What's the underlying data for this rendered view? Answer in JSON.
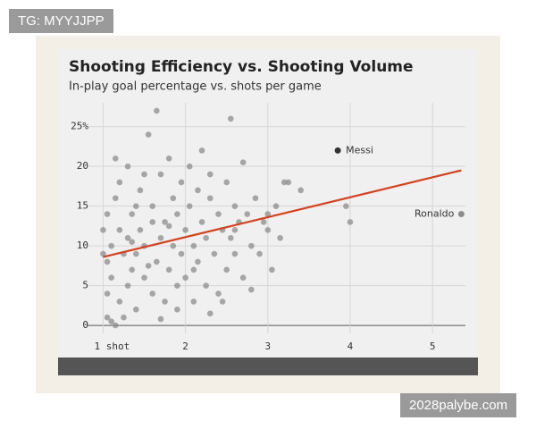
{
  "chart_data": {
    "type": "scatter",
    "title": "Shooting Efficiency vs. Shooting Volume",
    "subtitle": "In-play goal percentage vs. shots per game",
    "xlim": [
      0.8,
      5.4
    ],
    "ylim": [
      -1,
      28
    ],
    "xticks": [
      {
        "value": 1,
        "label": "1 shot"
      },
      2,
      3,
      4,
      5
    ],
    "yticks": [
      0,
      5,
      10,
      15,
      20,
      {
        "value": 25,
        "label": "25%"
      }
    ],
    "grid": true,
    "color": "#8c8c8c",
    "x": [
      1.05,
      1.1,
      1.15,
      1.05,
      1.1,
      1.2,
      1.05,
      1.1,
      1.2,
      1.05,
      1.15,
      1.2,
      1.25,
      1.3,
      1.3,
      1.35,
      1.35,
      1.4,
      1.4,
      1.45,
      1.45,
      1.5,
      1.5,
      1.55,
      1.6,
      1.6,
      1.65,
      1.65,
      1.7,
      1.7,
      1.75,
      1.75,
      1.8,
      1.8,
      1.85,
      1.85,
      1.9,
      1.9,
      1.95,
      1.95,
      2.0,
      2.0,
      2.05,
      2.05,
      2.1,
      2.1,
      2.15,
      2.15,
      2.2,
      2.2,
      2.25,
      2.25,
      2.3,
      2.3,
      2.35,
      2.4,
      2.4,
      2.45,
      2.5,
      2.5,
      2.55,
      2.55,
      2.6,
      2.6,
      2.65,
      2.7,
      2.7,
      2.75,
      2.8,
      2.85,
      2.9,
      2.95,
      3.0,
      3.05,
      3.1,
      3.15,
      3.2,
      3.25,
      3.4,
      3.95,
      4.0,
      1.3,
      1.5,
      1.6,
      1.4,
      1.25,
      1.9,
      2.3,
      1.7,
      1.15,
      2.45,
      2.8,
      3.0,
      1.55,
      2.1,
      1.8,
      2.6,
      1.35,
      1.0,
      1.0
    ],
    "values": [
      1,
      0.5,
      0,
      4,
      6,
      3,
      8,
      10,
      12,
      14,
      16,
      18,
      9,
      5,
      11,
      7,
      14,
      2,
      9,
      17,
      12,
      6,
      10,
      24,
      15,
      4,
      27,
      8,
      19,
      11,
      3,
      13,
      21,
      7,
      16,
      10,
      5,
      14,
      18,
      9,
      12,
      6,
      20,
      15,
      3,
      10,
      17,
      8,
      22,
      13,
      5,
      11,
      19,
      16,
      9,
      14,
      4,
      12,
      18,
      7,
      26,
      11,
      15,
      9,
      13,
      20.5,
      6,
      14,
      10,
      16,
      9,
      13,
      14,
      7,
      15,
      11,
      18,
      18,
      17,
      15,
      13,
      20,
      19,
      13,
      15,
      1,
      2,
      1.5,
      0.8,
      21,
      3,
      4.5,
      12,
      7.5,
      7,
      12.5,
      12,
      10.5,
      9,
      12
    ],
    "trend": {
      "color": "#d4411e",
      "x": [
        1.0,
        5.35
      ],
      "y": [
        8.6,
        19.5
      ]
    },
    "annotations": [
      {
        "text": "Messi",
        "x": 3.85,
        "y": 22,
        "color": "#333333"
      },
      {
        "text": "Ronaldo",
        "x": 5.35,
        "y": 14,
        "color": "#8c8c8c"
      }
    ]
  },
  "watermarks": [
    "TG: MYYJJPP",
    "2028palybe.com"
  ]
}
